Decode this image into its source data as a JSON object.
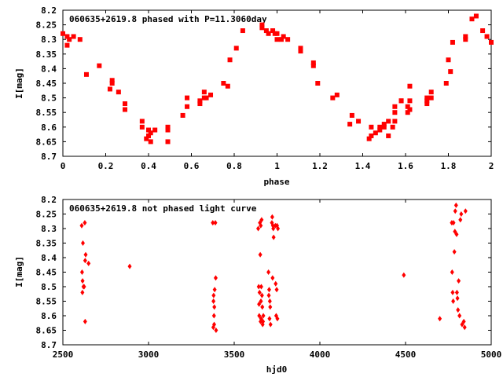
{
  "chart_data": [
    {
      "type": "scatter",
      "title": "060635+2619.8 phased with P=11.3060day",
      "xlabel": "phase",
      "ylabel": "I[mag]",
      "xlim": [
        0,
        2
      ],
      "ylim": [
        8.2,
        8.7
      ],
      "y_inverted": true,
      "grid": false,
      "marker_color": "#ff0000",
      "marker": "filled-square",
      "x_ticks": [
        "0",
        "0.2",
        "0.4",
        "0.6",
        "0.8",
        "1",
        "1.2",
        "1.4",
        "1.6",
        "1.8",
        "2"
      ],
      "y_ticks": [
        "8.2",
        "8.25",
        "8.3",
        "8.35",
        "8.4",
        "8.45",
        "8.5",
        "8.55",
        "8.6",
        "8.65",
        "8.7"
      ],
      "points": [
        [
          0.0,
          8.28
        ],
        [
          0.02,
          8.32
        ],
        [
          0.02,
          8.29
        ],
        [
          0.03,
          8.3
        ],
        [
          0.05,
          8.29
        ],
        [
          0.08,
          8.3
        ],
        [
          0.11,
          8.42
        ],
        [
          0.17,
          8.39
        ],
        [
          0.22,
          8.47
        ],
        [
          0.23,
          8.44
        ],
        [
          0.23,
          8.45
        ],
        [
          0.26,
          8.48
        ],
        [
          0.29,
          8.52
        ],
        [
          0.29,
          8.54
        ],
        [
          0.37,
          8.58
        ],
        [
          0.37,
          8.6
        ],
        [
          0.39,
          8.64
        ],
        [
          0.4,
          8.61
        ],
        [
          0.4,
          8.63
        ],
        [
          0.41,
          8.62
        ],
        [
          0.41,
          8.65
        ],
        [
          0.43,
          8.61
        ],
        [
          0.49,
          8.61
        ],
        [
          0.49,
          8.65
        ],
        [
          0.49,
          8.6
        ],
        [
          0.56,
          8.56
        ],
        [
          0.58,
          8.53
        ],
        [
          0.58,
          8.5
        ],
        [
          0.64,
          8.51
        ],
        [
          0.64,
          8.52
        ],
        [
          0.66,
          8.48
        ],
        [
          0.66,
          8.5
        ],
        [
          0.67,
          8.5
        ],
        [
          0.69,
          8.49
        ],
        [
          0.75,
          8.45
        ],
        [
          0.77,
          8.46
        ],
        [
          0.78,
          8.37
        ],
        [
          0.81,
          8.33
        ],
        [
          0.84,
          8.27
        ],
        [
          0.93,
          8.25
        ],
        [
          0.93,
          8.26
        ],
        [
          0.95,
          8.27
        ],
        [
          0.96,
          8.28
        ],
        [
          0.98,
          8.27
        ],
        [
          0.99,
          8.28
        ],
        [
          1.0,
          8.3
        ],
        [
          1.0,
          8.28
        ],
        [
          1.02,
          8.3
        ],
        [
          1.03,
          8.29
        ],
        [
          1.05,
          8.3
        ],
        [
          1.11,
          8.33
        ],
        [
          1.11,
          8.34
        ],
        [
          1.17,
          8.38
        ],
        [
          1.17,
          8.39
        ],
        [
          1.19,
          8.45
        ],
        [
          1.26,
          8.5
        ],
        [
          1.28,
          8.49
        ],
        [
          1.34,
          8.59
        ],
        [
          1.35,
          8.56
        ],
        [
          1.38,
          8.58
        ],
        [
          1.43,
          8.64
        ],
        [
          1.44,
          8.63
        ],
        [
          1.44,
          8.6
        ],
        [
          1.46,
          8.62
        ],
        [
          1.48,
          8.61
        ],
        [
          1.48,
          8.6
        ],
        [
          1.5,
          8.6
        ],
        [
          1.5,
          8.59
        ],
        [
          1.52,
          8.63
        ],
        [
          1.52,
          8.58
        ],
        [
          1.54,
          8.6
        ],
        [
          1.55,
          8.58
        ],
        [
          1.55,
          8.55
        ],
        [
          1.55,
          8.53
        ],
        [
          1.58,
          8.51
        ],
        [
          1.58,
          8.51
        ],
        [
          1.61,
          8.55
        ],
        [
          1.61,
          8.53
        ],
        [
          1.62,
          8.46
        ],
        [
          1.62,
          8.51
        ],
        [
          1.62,
          8.54
        ],
        [
          1.7,
          8.52
        ],
        [
          1.7,
          8.5
        ],
        [
          1.7,
          8.51
        ],
        [
          1.72,
          8.48
        ],
        [
          1.72,
          8.5
        ],
        [
          1.79,
          8.45
        ],
        [
          1.8,
          8.37
        ],
        [
          1.81,
          8.41
        ],
        [
          1.82,
          8.31
        ],
        [
          1.88,
          8.3
        ],
        [
          1.88,
          8.29
        ],
        [
          1.91,
          8.23
        ],
        [
          1.93,
          8.22
        ],
        [
          1.96,
          8.27
        ],
        [
          1.98,
          8.29
        ],
        [
          2.0,
          8.31
        ]
      ]
    },
    {
      "type": "scatter",
      "title": "060635+2619.8 not phased light curve",
      "xlabel": "hjd0",
      "ylabel": "I[mag]",
      "xlim": [
        2500,
        5000
      ],
      "ylim": [
        8.2,
        8.7
      ],
      "y_inverted": true,
      "grid": false,
      "marker_color": "#ff0000",
      "marker": "filled-diamond",
      "x_ticks": [
        "2500",
        "3000",
        "3500",
        "4000",
        "4500",
        "5000"
      ],
      "y_ticks": [
        "8.2",
        "8.25",
        "8.3",
        "8.35",
        "8.4",
        "8.45",
        "8.5",
        "8.55",
        "8.6",
        "8.65",
        "8.7"
      ],
      "points": [
        [
          2610,
          8.29
        ],
        [
          2612,
          8.45
        ],
        [
          2614,
          8.52
        ],
        [
          2615,
          8.48
        ],
        [
          2617,
          8.35
        ],
        [
          2620,
          8.5
        ],
        [
          2624,
          8.5
        ],
        [
          2628,
          8.28
        ],
        [
          2630,
          8.41
        ],
        [
          2630,
          8.62
        ],
        [
          2633,
          8.39
        ],
        [
          2650,
          8.42
        ],
        [
          2890,
          8.43
        ],
        [
          3375,
          8.28
        ],
        [
          3378,
          8.64
        ],
        [
          3379,
          8.55
        ],
        [
          3380,
          8.53
        ],
        [
          3382,
          8.6
        ],
        [
          3383,
          8.63
        ],
        [
          3384,
          8.57
        ],
        [
          3386,
          8.51
        ],
        [
          3390,
          8.28
        ],
        [
          3392,
          8.47
        ],
        [
          3394,
          8.65
        ],
        [
          3640,
          8.3
        ],
        [
          3643,
          8.5
        ],
        [
          3645,
          8.56
        ],
        [
          3646,
          8.6
        ],
        [
          3648,
          8.52
        ],
        [
          3650,
          8.28
        ],
        [
          3652,
          8.39
        ],
        [
          3654,
          8.62
        ],
        [
          3655,
          8.29
        ],
        [
          3656,
          8.55
        ],
        [
          3657,
          8.61
        ],
        [
          3658,
          8.5
        ],
        [
          3660,
          8.27
        ],
        [
          3662,
          8.53
        ],
        [
          3664,
          8.57
        ],
        [
          3666,
          8.63
        ],
        [
          3668,
          8.62
        ],
        [
          3670,
          8.6
        ],
        [
          3700,
          8.45
        ],
        [
          3702,
          8.53
        ],
        [
          3704,
          8.51
        ],
        [
          3706,
          8.61
        ],
        [
          3708,
          8.55
        ],
        [
          3710,
          8.57
        ],
        [
          3712,
          8.63
        ],
        [
          3720,
          8.28
        ],
        [
          3722,
          8.26
        ],
        [
          3724,
          8.47
        ],
        [
          3726,
          8.29
        ],
        [
          3728,
          8.3
        ],
        [
          3730,
          8.33
        ],
        [
          3740,
          8.29
        ],
        [
          3742,
          8.49
        ],
        [
          3745,
          8.6
        ],
        [
          3748,
          8.51
        ],
        [
          3750,
          8.29
        ],
        [
          3752,
          8.61
        ],
        [
          3755,
          8.3
        ],
        [
          4490,
          8.46
        ],
        [
          4700,
          8.61
        ],
        [
          4770,
          8.28
        ],
        [
          4772,
          8.45
        ],
        [
          4775,
          8.52
        ],
        [
          4778,
          8.55
        ],
        [
          4780,
          8.28
        ],
        [
          4785,
          8.38
        ],
        [
          4788,
          8.31
        ],
        [
          4790,
          8.24
        ],
        [
          4795,
          8.22
        ],
        [
          4798,
          8.32
        ],
        [
          4800,
          8.52
        ],
        [
          4803,
          8.54
        ],
        [
          4806,
          8.58
        ],
        [
          4810,
          8.48
        ],
        [
          4815,
          8.6
        ],
        [
          4820,
          8.27
        ],
        [
          4825,
          8.25
        ],
        [
          4830,
          8.63
        ],
        [
          4840,
          8.62
        ],
        [
          4845,
          8.64
        ],
        [
          4850,
          8.24
        ]
      ]
    }
  ]
}
